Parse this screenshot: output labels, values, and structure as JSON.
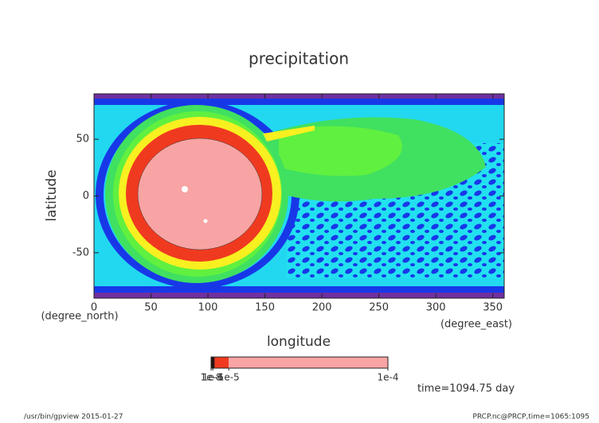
{
  "chart_data": {
    "type": "contour",
    "title": "precipitation",
    "x_label": "longitude",
    "x_unit": "(degree_east)",
    "y_label": "latitude",
    "y_unit": "(degree_north)",
    "xlim": [
      0,
      360
    ],
    "xticks": [
      0,
      50,
      100,
      150,
      200,
      250,
      300,
      350
    ],
    "ylim": [
      -90,
      90
    ],
    "yticks": [
      -50,
      0,
      50
    ],
    "colorbar": {
      "levels": [
        0,
        2e-06,
        1e-05,
        0.0001
      ],
      "colors": [
        "#2a1410",
        "#f03a20",
        "#f8a4a4"
      ],
      "lim": [
        0,
        0.0001
      ],
      "ticks": [
        1e-08,
        {
          "value": 1e-06,
          "label": "1e-6"
        },
        {
          "value": 1e-05,
          "label": "1e-5"
        },
        {
          "value": 0.0001,
          "label": "1e-4"
        }
      ]
    },
    "annotation": "time=1094.75 day",
    "footer_left": "/usr/bin/gpview  2015-01-27",
    "footer_right": "PRCP.nc@PRCP,time=1065:1095"
  }
}
